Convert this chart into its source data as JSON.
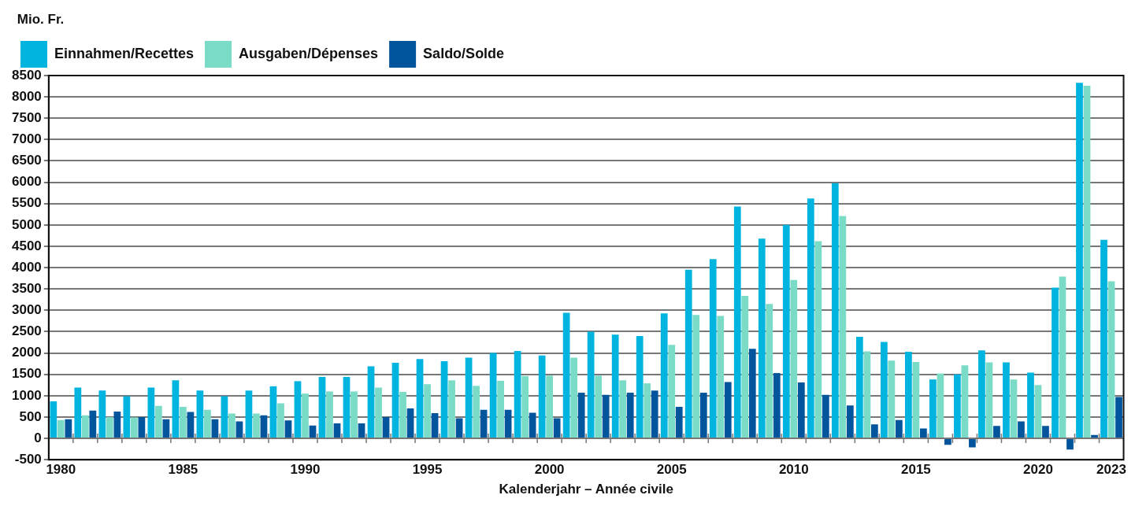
{
  "chart_data": {
    "type": "bar",
    "ylabel": "Mio. Fr.",
    "xlabel": "Kalenderjahr – Année civile",
    "categories": [
      "1980",
      null,
      null,
      null,
      null,
      "1985",
      null,
      null,
      null,
      null,
      "1990",
      null,
      null,
      null,
      null,
      "1995",
      null,
      null,
      null,
      null,
      "2000",
      null,
      null,
      null,
      null,
      "2005",
      null,
      null,
      null,
      null,
      "2010",
      null,
      null,
      null,
      null,
      "2015",
      null,
      null,
      null,
      null,
      "2020",
      null,
      null,
      "2023"
    ],
    "series": [
      {
        "name": "Einnahmen/Recettes",
        "color": "#00b4e0",
        "values": [
          870,
          1190,
          1120,
          990,
          1190,
          1360,
          1120,
          990,
          1120,
          1220,
          1340,
          1440,
          1440,
          1690,
          1770,
          1860,
          1810,
          1890,
          2000,
          2050,
          1940,
          2940,
          2500,
          2430,
          2400,
          2930,
          3950,
          4200,
          5430,
          4680,
          5000,
          5620,
          5980,
          2380,
          2260,
          2030,
          1380,
          1500,
          2060,
          1780,
          1540,
          3530,
          8330,
          4650
        ]
      },
      {
        "name": "Ausgaben/Dépenses",
        "color": "#7adcc6",
        "values": [
          430,
          540,
          500,
          490,
          760,
          740,
          670,
          580,
          580,
          820,
          1050,
          1100,
          1100,
          1190,
          1090,
          1270,
          1360,
          1230,
          1350,
          1460,
          1470,
          1890,
          1470,
          1360,
          1290,
          2190,
          2890,
          2870,
          3340,
          3150,
          3710,
          4620,
          5210,
          2040,
          1820,
          1790,
          1520,
          1710,
          1780,
          1380,
          1250,
          3790,
          8260,
          3680
        ]
      },
      {
        "name": "Saldo/Solde",
        "color": "#00559c",
        "values": [
          450,
          650,
          630,
          500,
          450,
          620,
          450,
          400,
          540,
          420,
          300,
          350,
          350,
          500,
          700,
          590,
          470,
          670,
          670,
          600,
          470,
          1070,
          1020,
          1070,
          1120,
          740,
          1070,
          1320,
          2100,
          1530,
          1310,
          1020,
          770,
          330,
          430,
          230,
          -150,
          -210,
          290,
          400,
          290,
          -260,
          80,
          970
        ]
      }
    ],
    "ylim": [
      -500,
      8500
    ],
    "yticks": [
      -500,
      0,
      500,
      1000,
      1500,
      2000,
      2500,
      3000,
      3500,
      4000,
      4500,
      5000,
      5500,
      6000,
      6500,
      7000,
      7500,
      8000,
      8500
    ],
    "grid": "y",
    "legend": "top left"
  }
}
